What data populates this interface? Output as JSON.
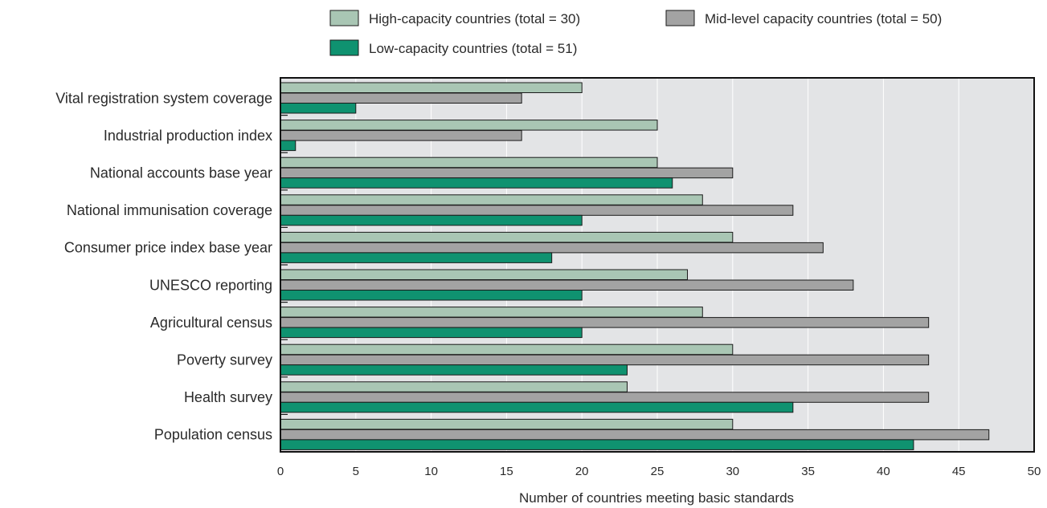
{
  "chart_data": {
    "type": "bar",
    "orientation": "horizontal",
    "xlabel": "Number of countries meeting basic standards",
    "xlim": [
      0,
      50
    ],
    "xticks": [
      0,
      5,
      10,
      15,
      20,
      25,
      30,
      35,
      40,
      45,
      50
    ],
    "grid": true,
    "legend_position": "top-center",
    "categories": [
      "Vital registration system coverage",
      "Industrial production index",
      "National accounts base year",
      "National immunisation coverage",
      "Consumer price index base year",
      "UNESCO reporting",
      "Agricultural census",
      "Poverty survey",
      "Health survey",
      "Population census"
    ],
    "series": [
      {
        "name": "High-capacity countries (total = 30)",
        "color": "#a9c6b4",
        "values": [
          20,
          25,
          25,
          28,
          30,
          27,
          28,
          30,
          23,
          30
        ]
      },
      {
        "name": "Mid-level capacity countries (total = 50)",
        "color": "#a3a3a3",
        "values": [
          16,
          16,
          30,
          34,
          36,
          38,
          43,
          43,
          43,
          47
        ]
      },
      {
        "name": "Low-capacity countries (total = 51)",
        "color": "#0f9270",
        "values": [
          5,
          1,
          26,
          20,
          18,
          20,
          20,
          23,
          34,
          42
        ]
      }
    ],
    "plot_background": "#e3e4e6",
    "grid_color": "#ffffff"
  }
}
